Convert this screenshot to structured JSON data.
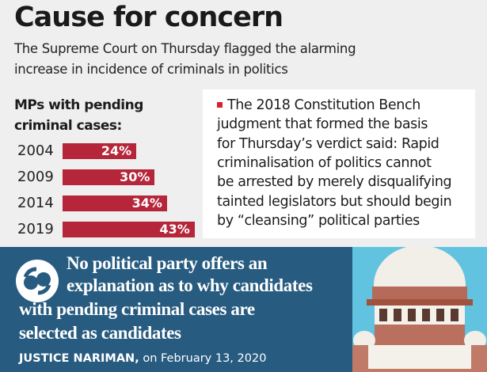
{
  "title": "Cause for concern",
  "subtitle_lines": [
    "The Supreme Court on Thursday flagged the alarming",
    "increase in incidence of criminals in politics"
  ],
  "chart_data": {
    "type": "bar",
    "orientation": "horizontal",
    "title": "MPs with pending criminal cases:",
    "title_lines": [
      "MPs with pending",
      "criminal cases:"
    ],
    "categories": [
      "2004",
      "2009",
      "2014",
      "2019"
    ],
    "values": [
      24,
      30,
      34,
      43
    ],
    "data_labels": [
      "24%",
      "30%",
      "34%",
      "43%"
    ],
    "unit": "%",
    "bar_color": "#b5263a"
  },
  "note": {
    "lines": [
      "The 2018 Constitution Bench",
      "judgment that formed the basis",
      "for Thursday’s verdict said: Rapid",
      "criminalisation of politics cannot",
      "be arrested by merely disqualifying",
      "tainted legislators but should begin",
      "by “cleansing” political parties"
    ],
    "bullet_color": "#d8202f"
  },
  "quote": {
    "lines": [
      "No political party offers an",
      "explanation as to why candidates",
      "with pending criminal cases are",
      "selected as candidates"
    ],
    "author": "JUSTICE NARIMAN,",
    "date": "on February 13, 2020",
    "panel_color": "#275b80"
  }
}
